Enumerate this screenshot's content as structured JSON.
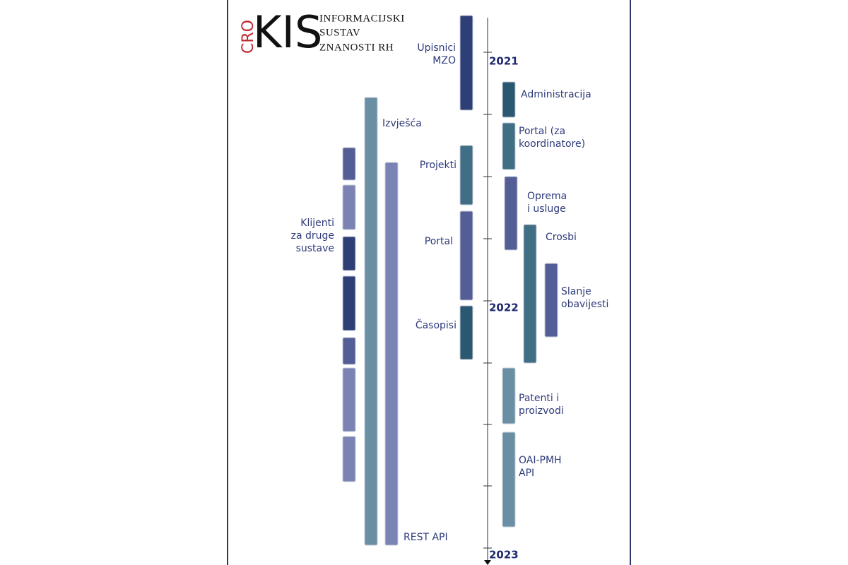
{
  "logo": {
    "prefix": "CRO",
    "name": "KIS",
    "subtitle": [
      "INFORMACIJSKI",
      "SUSTAV",
      "ZNANOSTI RH"
    ]
  },
  "timeline": {
    "years": [
      "2021",
      "2022",
      "2023"
    ]
  },
  "items": [
    {
      "label": [
        "Upisnici",
        "MZO"
      ]
    },
    {
      "label": [
        "Administracija"
      ]
    },
    {
      "label": [
        "Portal (za",
        "koordinatore)"
      ]
    },
    {
      "label": [
        "Oprema",
        "i usluge"
      ]
    },
    {
      "label": [
        "Crosbi"
      ]
    },
    {
      "label": [
        "Slanje",
        "obavijesti"
      ]
    },
    {
      "label": [
        "Patenti i",
        "proizvodi"
      ]
    },
    {
      "label": [
        "OAI-PMH",
        "API"
      ]
    },
    {
      "label": [
        "Projekti"
      ]
    },
    {
      "label": [
        "Portal"
      ]
    },
    {
      "label": [
        "Časopisi"
      ]
    },
    {
      "label": [
        "Izvješća"
      ]
    },
    {
      "label": [
        "REST API"
      ]
    },
    {
      "label": [
        "Klijenti",
        "za druge",
        "sustave"
      ]
    }
  ]
}
